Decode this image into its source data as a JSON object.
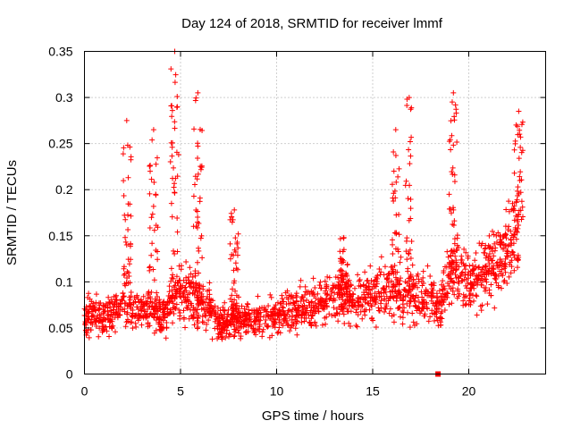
{
  "chart_data": {
    "type": "scatter",
    "title": "Day 124 of 2018, SRMTID for receiver lmmf",
    "xlabel": "GPS time / hours",
    "ylabel": "SRMTID / TECUs",
    "xlim": [
      0,
      24
    ],
    "ylim": [
      0,
      0.35
    ],
    "grid": true,
    "marker": "+",
    "x_ticks": [
      {
        "value": 0,
        "label": "0"
      },
      {
        "value": 5,
        "label": "5"
      },
      {
        "value": 10,
        "label": "10"
      },
      {
        "value": 15,
        "label": "15"
      },
      {
        "value": 20,
        "label": "20"
      }
    ],
    "y_ticks": [
      {
        "value": 0,
        "label": "0"
      },
      {
        "value": 0.05,
        "label": "0.05"
      },
      {
        "value": 0.1,
        "label": "0.1"
      },
      {
        "value": 0.15,
        "label": "0.15"
      },
      {
        "value": 0.2,
        "label": "0.2"
      },
      {
        "value": 0.25,
        "label": "0.25"
      },
      {
        "value": 0.3,
        "label": "0.3"
      },
      {
        "value": 0.35,
        "label": "0.35"
      }
    ],
    "series": [
      {
        "name": "SRMTID",
        "color": "#ff0000",
        "profile": [
          {
            "x": 0.0,
            "y": 0.065
          },
          {
            "x": 1.0,
            "y": 0.06
          },
          {
            "x": 2.0,
            "y": 0.075
          },
          {
            "x": 3.0,
            "y": 0.07
          },
          {
            "x": 4.0,
            "y": 0.06
          },
          {
            "x": 5.0,
            "y": 0.09
          },
          {
            "x": 6.0,
            "y": 0.08
          },
          {
            "x": 7.0,
            "y": 0.055
          },
          {
            "x": 8.0,
            "y": 0.06
          },
          {
            "x": 9.0,
            "y": 0.06
          },
          {
            "x": 10.0,
            "y": 0.062
          },
          {
            "x": 11.0,
            "y": 0.068
          },
          {
            "x": 12.0,
            "y": 0.075
          },
          {
            "x": 13.0,
            "y": 0.085
          },
          {
            "x": 14.0,
            "y": 0.08
          },
          {
            "x": 15.0,
            "y": 0.085
          },
          {
            "x": 16.0,
            "y": 0.09
          },
          {
            "x": 17.0,
            "y": 0.085
          },
          {
            "x": 18.0,
            "y": 0.085
          },
          {
            "x": 18.5,
            "y": 0.07
          },
          {
            "x": 19.0,
            "y": 0.12
          },
          {
            "x": 20.0,
            "y": 0.1
          },
          {
            "x": 21.0,
            "y": 0.115
          },
          {
            "x": 22.0,
            "y": 0.135
          },
          {
            "x": 22.6,
            "y": 0.15
          }
        ],
        "peaks": [
          {
            "x": 2.2,
            "y": 0.275
          },
          {
            "x": 3.6,
            "y": 0.265
          },
          {
            "x": 4.7,
            "y": 0.35
          },
          {
            "x": 5.9,
            "y": 0.305
          },
          {
            "x": 7.8,
            "y": 0.178
          },
          {
            "x": 13.5,
            "y": 0.148
          },
          {
            "x": 16.2,
            "y": 0.265
          },
          {
            "x": 16.9,
            "y": 0.3
          },
          {
            "x": 19.2,
            "y": 0.305
          },
          {
            "x": 22.6,
            "y": 0.285
          }
        ],
        "outliers": [
          {
            "x": 18.4,
            "y": 0.0
          }
        ]
      }
    ]
  }
}
